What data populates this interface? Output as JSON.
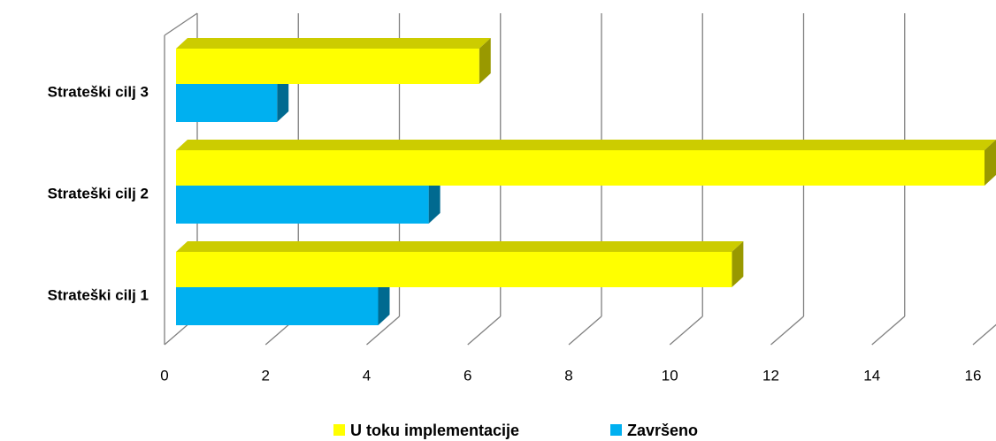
{
  "chart_data": {
    "type": "bar3d_horizontal",
    "categories": [
      "Strateški cilj 1",
      "Strateški cilj 2",
      "Strateški cilj 3"
    ],
    "series": [
      {
        "name": "U toku implementacije",
        "color": "#ffff00",
        "values": [
          11,
          16,
          6
        ]
      },
      {
        "name": "Završeno",
        "color": "#00b0f0",
        "values": [
          4,
          5,
          2
        ]
      }
    ],
    "xlim": [
      0,
      16
    ],
    "xticks": [
      0,
      2,
      4,
      6,
      8,
      10,
      12,
      14,
      16
    ],
    "grid": true,
    "legend": "bottom"
  }
}
